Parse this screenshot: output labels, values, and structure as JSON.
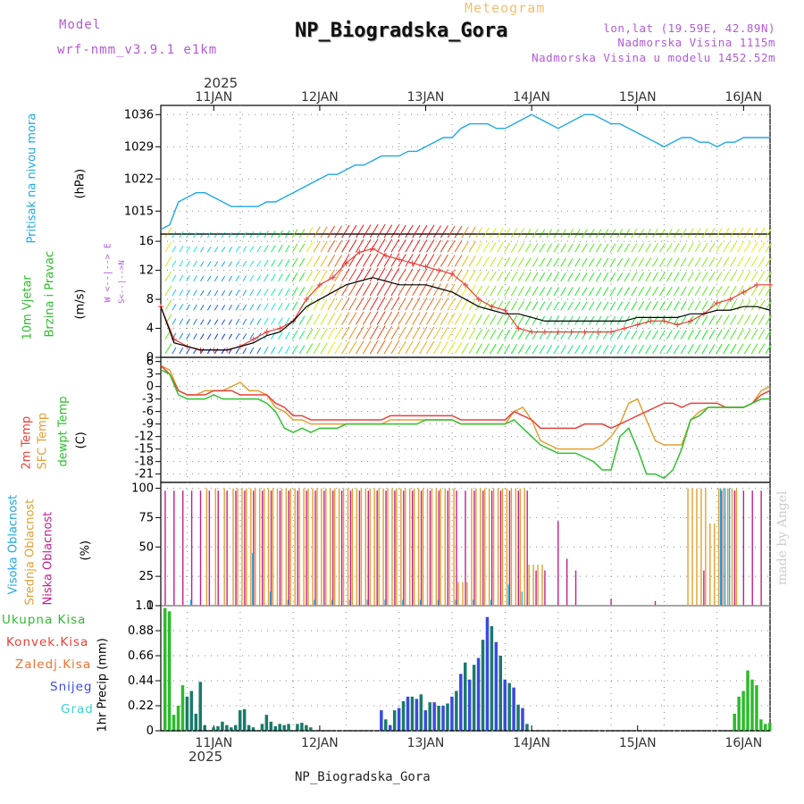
{
  "header": {
    "model_label": "Model",
    "model_name": "wrf-nmm_v3.9.1 e1km",
    "title": "NP_Biogradska_Gora",
    "subtitle": "Meteogram",
    "coords": "lon,lat (19.59E, 42.89N)",
    "elev": "Nadmorska Visina 1115m",
    "elev_model": "Nadmorska Visina u modelu 1452.52m"
  },
  "time_axis": {
    "year": "2025",
    "days": [
      "11JAN",
      "12JAN",
      "13JAN",
      "14JAN",
      "15JAN",
      "16JAN"
    ],
    "start_hour": -6,
    "end_hour": 132
  },
  "footer": {
    "station": "NP_Biogradska_Gora",
    "credit": "made by Angel"
  },
  "colors": {
    "pressure": "#1fa8e6",
    "temp2m": "#e8403a",
    "sfctemp": "#e0a030",
    "dewpt": "#30c030",
    "high_cloud": "#1fa8e6",
    "mid_cloud": "#e0a030",
    "low_cloud": "#c02090",
    "rain_total": "#2fba2f",
    "rain_conv": "#e8403a",
    "freezing": "#f07030",
    "snow": "#3a4ae0",
    "hail": "#3ad0d0"
  },
  "panels": {
    "pressure": {
      "label": "Pritisak na nivou mora",
      "unit": "(hPa)"
    },
    "wind": {
      "label1": "10m Vjetar",
      "label2": "Brzina i Pravac",
      "unit": "(m/s)",
      "compass": "W <--|--> E",
      "compass2": "S<--|-->N"
    },
    "temp": {
      "l1": "2m Temp",
      "l2": "SFC Temp",
      "l3": "dewpt Temp",
      "unit": "(C)"
    },
    "cloud": {
      "l1": "Visoka Oblacnost",
      "l2": "Srednja Oblacnost",
      "l3": "Niska Oblacnost",
      "unit": "(%)"
    },
    "precip": {
      "unit": "1hr Precip (mm)",
      "legend": [
        "Ukupna Kisa",
        "Konvek.Kisa",
        "Zaledj.Kisa",
        "Snijeg",
        "Grad"
      ]
    }
  },
  "chart_data": [
    {
      "type": "line",
      "name": "pressure",
      "ylabel": "(hPa)",
      "ylim": [
        1010,
        1038
      ],
      "yticks": [
        1015,
        1022,
        1029,
        1036
      ],
      "x": [
        -6,
        -4,
        -2,
        0,
        2,
        4,
        6,
        8,
        10,
        12,
        14,
        16,
        18,
        20,
        22,
        24,
        26,
        28,
        30,
        32,
        34,
        36,
        38,
        40,
        42,
        44,
        46,
        48,
        50,
        52,
        54,
        56,
        58,
        60,
        62,
        64,
        66,
        68,
        70,
        72,
        74,
        76,
        78,
        80,
        82,
        84,
        86,
        88,
        90,
        92,
        94,
        96,
        98,
        100,
        102,
        104,
        106,
        108,
        110,
        112,
        114,
        116,
        118,
        120,
        122,
        124,
        126,
        128,
        130,
        132
      ],
      "series": [
        {
          "values": [
            1011,
            1012,
            1017,
            1018,
            1019,
            1019,
            1018,
            1017,
            1016,
            1016,
            1016,
            1016,
            1017,
            1017,
            1018,
            1019,
            1020,
            1021,
            1022,
            1023,
            1023,
            1024,
            1025,
            1025,
            1026,
            1027,
            1027,
            1027,
            1028,
            1028,
            1029,
            1030,
            1031,
            1031,
            1033,
            1034,
            1034,
            1034,
            1033,
            1033,
            1034,
            1035,
            1036,
            1035,
            1034,
            1033,
            1034,
            1035,
            1036,
            1036,
            1035,
            1034,
            1034,
            1033,
            1032,
            1031,
            1030,
            1029,
            1030,
            1031,
            1031,
            1030,
            1030,
            1029,
            1030,
            1030,
            1031,
            1031,
            1031,
            1031
          ]
        }
      ]
    },
    {
      "type": "line",
      "name": "wind",
      "ylabel": "(m/s)",
      "ylim": [
        0,
        17
      ],
      "yticks": [
        0,
        4,
        8,
        12,
        16
      ],
      "x": [
        -6,
        -3,
        0,
        3,
        6,
        9,
        12,
        15,
        18,
        21,
        24,
        27,
        30,
        33,
        36,
        39,
        42,
        45,
        48,
        51,
        54,
        57,
        60,
        63,
        66,
        69,
        72,
        75,
        78,
        81,
        84,
        87,
        90,
        93,
        96,
        99,
        102,
        105,
        108,
        111,
        114,
        117,
        120,
        123,
        126,
        129,
        132
      ],
      "series": [
        {
          "name": "speed",
          "values": [
            7,
            2,
            1.5,
            1,
            1,
            1,
            1.5,
            2,
            3,
            3.5,
            5,
            7,
            8,
            9,
            10,
            10.5,
            11,
            10.5,
            10,
            10,
            10,
            9.5,
            9,
            8,
            7,
            6.5,
            6,
            6,
            5.5,
            5,
            5,
            5,
            5,
            5,
            5,
            5,
            5.5,
            5.5,
            5.5,
            5.5,
            6,
            6,
            6.5,
            6.5,
            7,
            7,
            6.5
          ]
        },
        {
          "name": "gust",
          "values": [
            7,
            2.5,
            1.5,
            1,
            1,
            1,
            1.5,
            2.5,
            3.5,
            4,
            5,
            8,
            10,
            11,
            13,
            14.5,
            15,
            14,
            13.5,
            13,
            12.5,
            12,
            11.5,
            10,
            8,
            7,
            6.5,
            4,
            3.5,
            3.5,
            3.5,
            3.5,
            3.5,
            3.5,
            3.5,
            4,
            4.5,
            5,
            5,
            4.5,
            5,
            6,
            7.5,
            8,
            9,
            10,
            10
          ]
        }
      ]
    },
    {
      "type": "line",
      "name": "temperature",
      "ylabel": "(C)",
      "ylim": [
        -23,
        7
      ],
      "yticks": [
        -21,
        -18,
        -15,
        -12,
        -9,
        -6,
        -3,
        0,
        3,
        6
      ],
      "x": [
        -6,
        -4,
        -2,
        0,
        2,
        4,
        6,
        8,
        10,
        12,
        14,
        16,
        18,
        20,
        22,
        24,
        26,
        28,
        30,
        32,
        34,
        36,
        38,
        40,
        42,
        44,
        46,
        48,
        50,
        52,
        54,
        56,
        58,
        60,
        62,
        64,
        66,
        68,
        70,
        72,
        74,
        76,
        78,
        80,
        82,
        84,
        86,
        88,
        90,
        92,
        94,
        96,
        98,
        100,
        102,
        104,
        106,
        108,
        110,
        112,
        114,
        116,
        118,
        120,
        122,
        124,
        126,
        128,
        130,
        132
      ],
      "series": [
        {
          "name": "2m",
          "values": [
            5,
            3,
            -1,
            -2,
            -2,
            -2,
            -1,
            -1,
            -1,
            -2,
            -2,
            -2,
            -2,
            -4,
            -5,
            -7,
            -7,
            -8,
            -8,
            -8,
            -8,
            -8,
            -8,
            -8,
            -8,
            -8,
            -7,
            -7,
            -7,
            -7,
            -7,
            -7,
            -7,
            -7,
            -8,
            -8,
            -8,
            -8,
            -8,
            -8,
            -6,
            -7,
            -8,
            -10,
            -10,
            -10,
            -10,
            -10,
            -9,
            -9,
            -9,
            -10,
            -9,
            -8,
            -7,
            -6,
            -5,
            -4,
            -4,
            -5,
            -4,
            -4,
            -4,
            -4,
            -5,
            -5,
            -5,
            -4,
            -2,
            -1
          ]
        },
        {
          "name": "sfc",
          "values": [
            5,
            4,
            -1,
            -2,
            -2,
            -1,
            -1,
            -1,
            0,
            1,
            -1,
            -1,
            -2,
            -5,
            -6,
            -8,
            -8,
            -9,
            -9,
            -9,
            -9,
            -9,
            -9,
            -9,
            -9,
            -9,
            -8,
            -8,
            -8,
            -8,
            -8,
            -8,
            -8,
            -8,
            -9,
            -9,
            -9,
            -9,
            -9,
            -9,
            -6,
            -5,
            -8,
            -13,
            -14,
            -15,
            -15,
            -15,
            -15,
            -15,
            -14,
            -12,
            -9,
            -4,
            -3,
            -8,
            -13,
            -14,
            -14,
            -14,
            -8,
            -6,
            -5,
            -5,
            -5,
            -5,
            -5,
            -4,
            -1,
            0
          ]
        },
        {
          "name": "dewpt",
          "values": [
            4,
            3,
            -2,
            -3,
            -3,
            -3,
            -2,
            -3,
            -3,
            -3,
            -3,
            -3,
            -4,
            -6,
            -10,
            -11,
            -10,
            -11,
            -10,
            -10,
            -10,
            -9,
            -9,
            -9,
            -9,
            -9,
            -9,
            -9,
            -9,
            -9,
            -8,
            -8,
            -8,
            -8,
            -9,
            -9,
            -9,
            -9,
            -9,
            -9,
            -8,
            -10,
            -12,
            -14,
            -15,
            -16,
            -16,
            -16,
            -17,
            -18,
            -20,
            -20,
            -12,
            -10,
            -15,
            -21,
            -21,
            -22,
            -20,
            -15,
            -8,
            -7,
            -5,
            -5,
            -5,
            -5,
            -5,
            -4,
            -3,
            -3
          ]
        }
      ]
    },
    {
      "type": "bar",
      "name": "cloud",
      "ylabel": "(%)",
      "ylim": [
        0,
        105
      ],
      "yticks": [
        0,
        25,
        50,
        75,
        100
      ]
    },
    {
      "type": "bar",
      "name": "precip",
      "ylabel": "1hr Precip (mm)",
      "ylim": [
        0,
        1.1
      ],
      "yticks": [
        0,
        0.22,
        0.44,
        0.66,
        0.88,
        1.1
      ],
      "x": [
        -5,
        -4,
        -3,
        -2,
        -1,
        0,
        1,
        2,
        3,
        4,
        6,
        7,
        8,
        9,
        10,
        11,
        12,
        13,
        14,
        15,
        17,
        18,
        19,
        20,
        21,
        22,
        23,
        25,
        26,
        27,
        28,
        44,
        45,
        46,
        47,
        48,
        49,
        50,
        51,
        52,
        53,
        54,
        55,
        56,
        57,
        58,
        59,
        60,
        61,
        62,
        63,
        64,
        65,
        66,
        67,
        68,
        69,
        70,
        71,
        72,
        73,
        74,
        75,
        76,
        77,
        124,
        125,
        126,
        127,
        128,
        129,
        130,
        131,
        132
      ],
      "series": [
        {
          "name": "rain_total",
          "values": [
            1.08,
            1.05,
            0.14,
            0.22,
            0.4,
            0.3,
            0.35,
            0.15,
            0.43,
            0.05,
            0.03,
            0.04,
            0.08,
            0.05,
            0.03,
            0.05,
            0.18,
            0.19,
            0.05,
            0.03,
            0.06,
            0.14,
            0.08,
            0.04,
            0.06,
            0.05,
            0.06,
            0.06,
            0.07,
            0.05,
            0.03,
            0.18,
            0.1,
            0.05,
            0.18,
            0.2,
            0.26,
            0.3,
            0.3,
            0.28,
            0.32,
            0.18,
            0.25,
            0.25,
            0.22,
            0.22,
            0.24,
            0.3,
            0.35,
            0.5,
            0.6,
            0.45,
            0.58,
            0.64,
            0.8,
            1.0,
            0.92,
            0.78,
            0.66,
            0.45,
            0.42,
            0.38,
            0.23,
            0.2,
            0.06,
            0.15,
            0.3,
            0.35,
            0.53,
            0.45,
            0.4,
            0.1,
            0.06,
            0.07
          ]
        }
      ]
    }
  ]
}
